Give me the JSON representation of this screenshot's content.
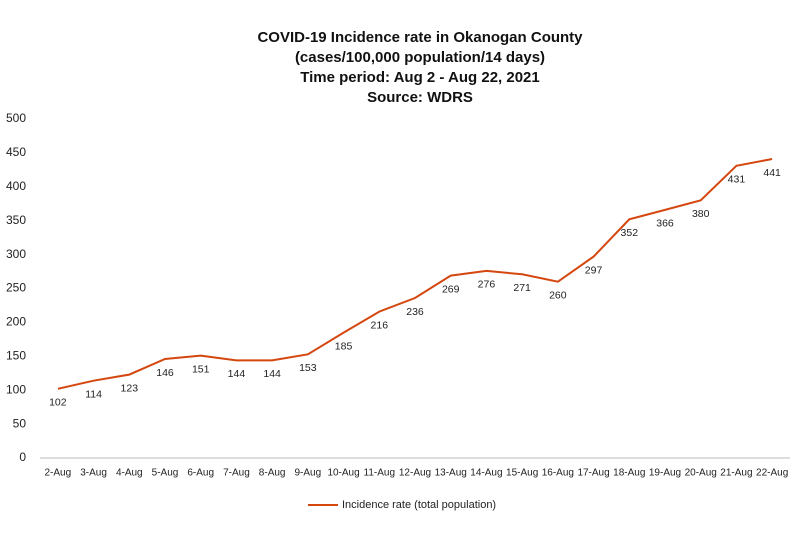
{
  "chart_data": {
    "type": "line",
    "title": "COVID-19 Incidence rate in Okanogan County",
    "subtitle": [
      "(cases/100,000 population/14 days)",
      "Time period: Aug 2 - Aug 22, 2021",
      "Source: WDRS"
    ],
    "categories": [
      "2-Aug",
      "3-Aug",
      "4-Aug",
      "5-Aug",
      "6-Aug",
      "7-Aug",
      "8-Aug",
      "9-Aug",
      "10-Aug",
      "11-Aug",
      "12-Aug",
      "13-Aug",
      "14-Aug",
      "15-Aug",
      "16-Aug",
      "17-Aug",
      "18-Aug",
      "19-Aug",
      "20-Aug",
      "21-Aug",
      "22-Aug"
    ],
    "series": [
      {
        "name": "Incidence rate (total population)",
        "color": "#d4470f",
        "values": [
          102,
          114,
          123,
          146,
          151,
          144,
          144,
          153,
          185,
          216,
          236,
          269,
          276,
          271,
          260,
          297,
          352,
          366,
          380,
          431,
          441
        ]
      }
    ],
    "ylim": [
      0,
      500
    ],
    "yticks": [
      0,
      50,
      100,
      150,
      200,
      250,
      300,
      350,
      400,
      450,
      500
    ],
    "grid": false,
    "data_labels": true,
    "legend": "bottom"
  }
}
